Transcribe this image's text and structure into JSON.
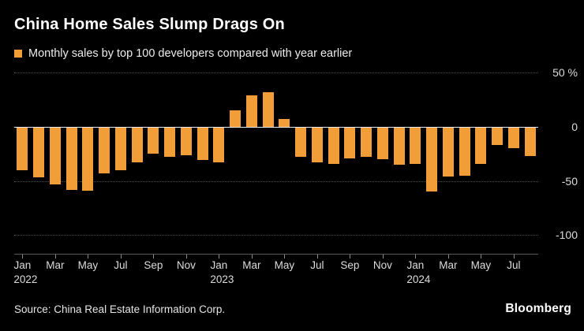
{
  "header": {
    "title": "China Home Sales Slump Drags On",
    "legend_label": "Monthly sales by top 100 developers compared with year earlier"
  },
  "footer": {
    "source": "Source: China Real Estate Information Corp.",
    "brand": "Bloomberg"
  },
  "colors": {
    "background": "#000000",
    "bar": "#F19D38",
    "gridline": "#4F4F4F",
    "zero_line": "#E9E9E9",
    "axis_line": "#5A5A5A",
    "axis_text": "#DCDCDC"
  },
  "chart_data": {
    "type": "bar",
    "title": "China Home Sales Slump Drags On",
    "subtitle": "Monthly sales by top 100 developers compared with year earlier",
    "unit": "%",
    "ylim": [
      -100,
      50
    ],
    "grid": "horizontal dotted, solid zero line, y-axis labels on right",
    "legend_position": "top-left",
    "x": [
      "Jan 2022",
      "Feb 2022",
      "Mar 2022",
      "Apr 2022",
      "May 2022",
      "Jun 2022",
      "Jul 2022",
      "Aug 2022",
      "Sep 2022",
      "Oct 2022",
      "Nov 2022",
      "Dec 2022",
      "Jan 2023",
      "Feb 2023",
      "Mar 2023",
      "Apr 2023",
      "May 2023",
      "Jun 2023",
      "Jul 2023",
      "Aug 2023",
      "Sep 2023",
      "Oct 2023",
      "Nov 2023",
      "Dec 2023",
      "Jan 2024",
      "Feb 2024",
      "Mar 2024",
      "Apr 2024",
      "May 2024",
      "Jun 2024",
      "Jul 2024",
      "Aug 2024"
    ],
    "values": [
      -40,
      -47,
      -53,
      -58,
      -59,
      -43,
      -40,
      -33,
      -25,
      -28,
      -26,
      -31,
      -33,
      15,
      29,
      32,
      7,
      -28,
      -33,
      -34,
      -29,
      -28,
      -30,
      -35,
      -34,
      -60,
      -46,
      -45,
      -34,
      -17,
      -20,
      -27
    ],
    "yticks": [
      {
        "value": 50,
        "label": "50 %"
      },
      {
        "value": 0,
        "label": "0"
      },
      {
        "value": -50,
        "label": "-50"
      },
      {
        "value": -100,
        "label": "-100"
      }
    ],
    "xticks": [
      {
        "index": 0,
        "label": "Jan",
        "year": "2022"
      },
      {
        "index": 2,
        "label": "Mar"
      },
      {
        "index": 4,
        "label": "May"
      },
      {
        "index": 6,
        "label": "Jul"
      },
      {
        "index": 8,
        "label": "Sep"
      },
      {
        "index": 10,
        "label": "Nov"
      },
      {
        "index": 12,
        "label": "Jan",
        "year": "2023"
      },
      {
        "index": 14,
        "label": "Mar"
      },
      {
        "index": 16,
        "label": "May"
      },
      {
        "index": 18,
        "label": "Jul"
      },
      {
        "index": 20,
        "label": "Sep"
      },
      {
        "index": 22,
        "label": "Nov"
      },
      {
        "index": 24,
        "label": "Jan",
        "year": "2024"
      },
      {
        "index": 26,
        "label": "Mar"
      },
      {
        "index": 28,
        "label": "May"
      },
      {
        "index": 30,
        "label": "Jul"
      }
    ]
  }
}
